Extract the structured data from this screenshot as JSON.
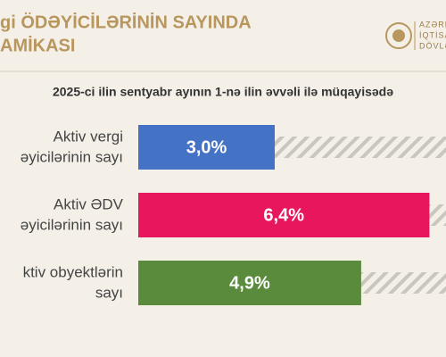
{
  "header": {
    "title_lines": [
      "gi ÖDƏYİCİLƏRİNİN SAYINDA",
      "AMİKASI"
    ],
    "logo_lines": [
      "AZƏRBA",
      "İQTİSAD",
      "DÖVLƏT"
    ]
  },
  "chart_data": {
    "type": "bar",
    "orientation": "horizontal",
    "subtitle": "2025-ci ilin sentyabr ayının 1-nə ilin əvvəli ilə müqayisədə",
    "categories": [
      [
        "Aktiv vergi",
        "əyicilərinin sayı"
      ],
      [
        "Aktiv ƏDV",
        "əyicilərinin sayı"
      ],
      [
        "ktiv obyektlərin",
        "sayı"
      ]
    ],
    "values": [
      3.0,
      6.4,
      4.9
    ],
    "value_labels": [
      "3,0%",
      "6,4%",
      "4,9%"
    ],
    "colors": [
      "#4472c4",
      "#e8175d",
      "#5a8a3c"
    ]
  }
}
